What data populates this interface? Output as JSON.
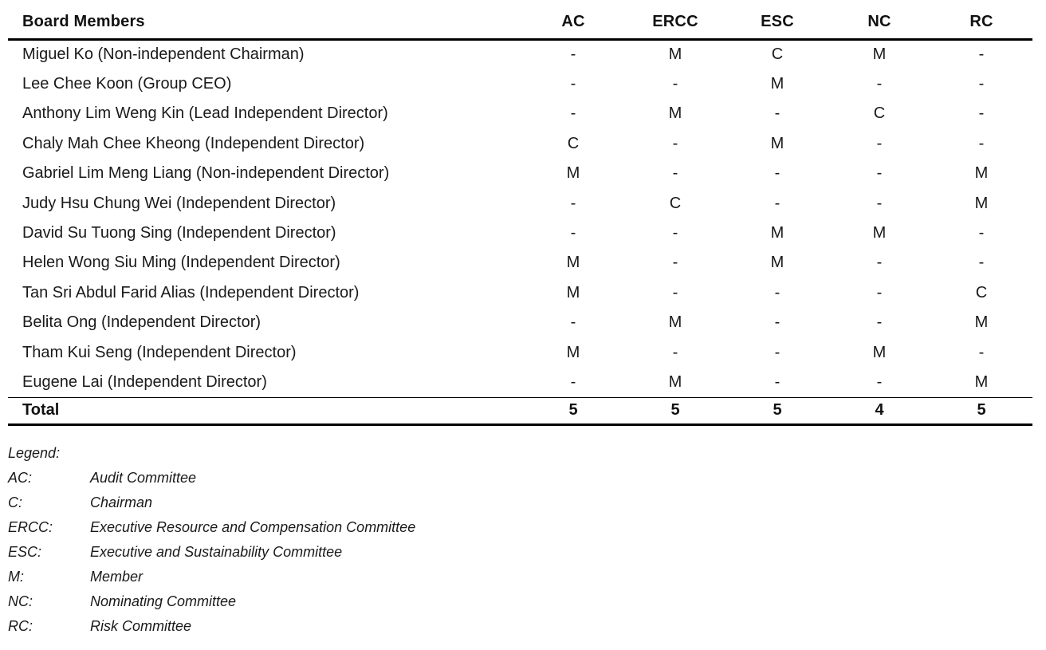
{
  "table": {
    "header_label": "Board Members",
    "columns": [
      "AC",
      "ERCC",
      "ESC",
      "NC",
      "RC"
    ],
    "rows": [
      {
        "name": "Miguel Ko (Non-independent Chairman)",
        "cells": [
          "-",
          "M",
          "C",
          "M",
          "-"
        ]
      },
      {
        "name": "Lee Chee Koon (Group CEO)",
        "cells": [
          "-",
          "-",
          "M",
          "-",
          "-"
        ]
      },
      {
        "name": "Anthony Lim Weng Kin (Lead Independent Director)",
        "cells": [
          "-",
          "M",
          "-",
          "C",
          "-"
        ]
      },
      {
        "name": "Chaly Mah Chee Kheong (Independent Director)",
        "cells": [
          "C",
          "-",
          "M",
          "-",
          "-"
        ]
      },
      {
        "name": "Gabriel Lim Meng Liang (Non-independent Director)",
        "cells": [
          "M",
          "-",
          "-",
          "-",
          "M"
        ]
      },
      {
        "name": "Judy Hsu Chung Wei (Independent Director)",
        "cells": [
          "-",
          "C",
          "-",
          "-",
          "M"
        ]
      },
      {
        "name": "David Su Tuong Sing (Independent Director)",
        "cells": [
          "-",
          "-",
          "M",
          "M",
          "-"
        ]
      },
      {
        "name": "Helen Wong Siu Ming (Independent Director)",
        "cells": [
          "M",
          "-",
          "M",
          "-",
          "-"
        ]
      },
      {
        "name": "Tan Sri Abdul Farid Alias (Independent Director)",
        "cells": [
          "M",
          "-",
          "-",
          "-",
          "C"
        ]
      },
      {
        "name": "Belita Ong (Independent Director)",
        "cells": [
          "-",
          "M",
          "-",
          "-",
          "M"
        ]
      },
      {
        "name": "Tham Kui Seng (Independent Director)",
        "cells": [
          "M",
          "-",
          "-",
          "M",
          "-"
        ]
      },
      {
        "name": "Eugene Lai (Independent Director)",
        "cells": [
          "-",
          "M",
          "-",
          "-",
          "M"
        ]
      }
    ],
    "total_label": "Total",
    "totals": [
      "5",
      "5",
      "5",
      "4",
      "5"
    ]
  },
  "legend": {
    "title": "Legend:",
    "items": [
      {
        "abbr": "AC:",
        "desc": "Audit Committee"
      },
      {
        "abbr": "C:",
        "desc": "Chairman"
      },
      {
        "abbr": "ERCC:",
        "desc": "Executive Resource and Compensation Committee"
      },
      {
        "abbr": "ESC:",
        "desc": "Executive and Sustainability Committee"
      },
      {
        "abbr": "M:",
        "desc": "Member"
      },
      {
        "abbr": "NC:",
        "desc": "Nominating Committee"
      },
      {
        "abbr": "RC:",
        "desc": "Risk Committee"
      }
    ]
  },
  "colors": {
    "text": "#1a1a1a",
    "line": "#000000",
    "background": "#ffffff"
  }
}
